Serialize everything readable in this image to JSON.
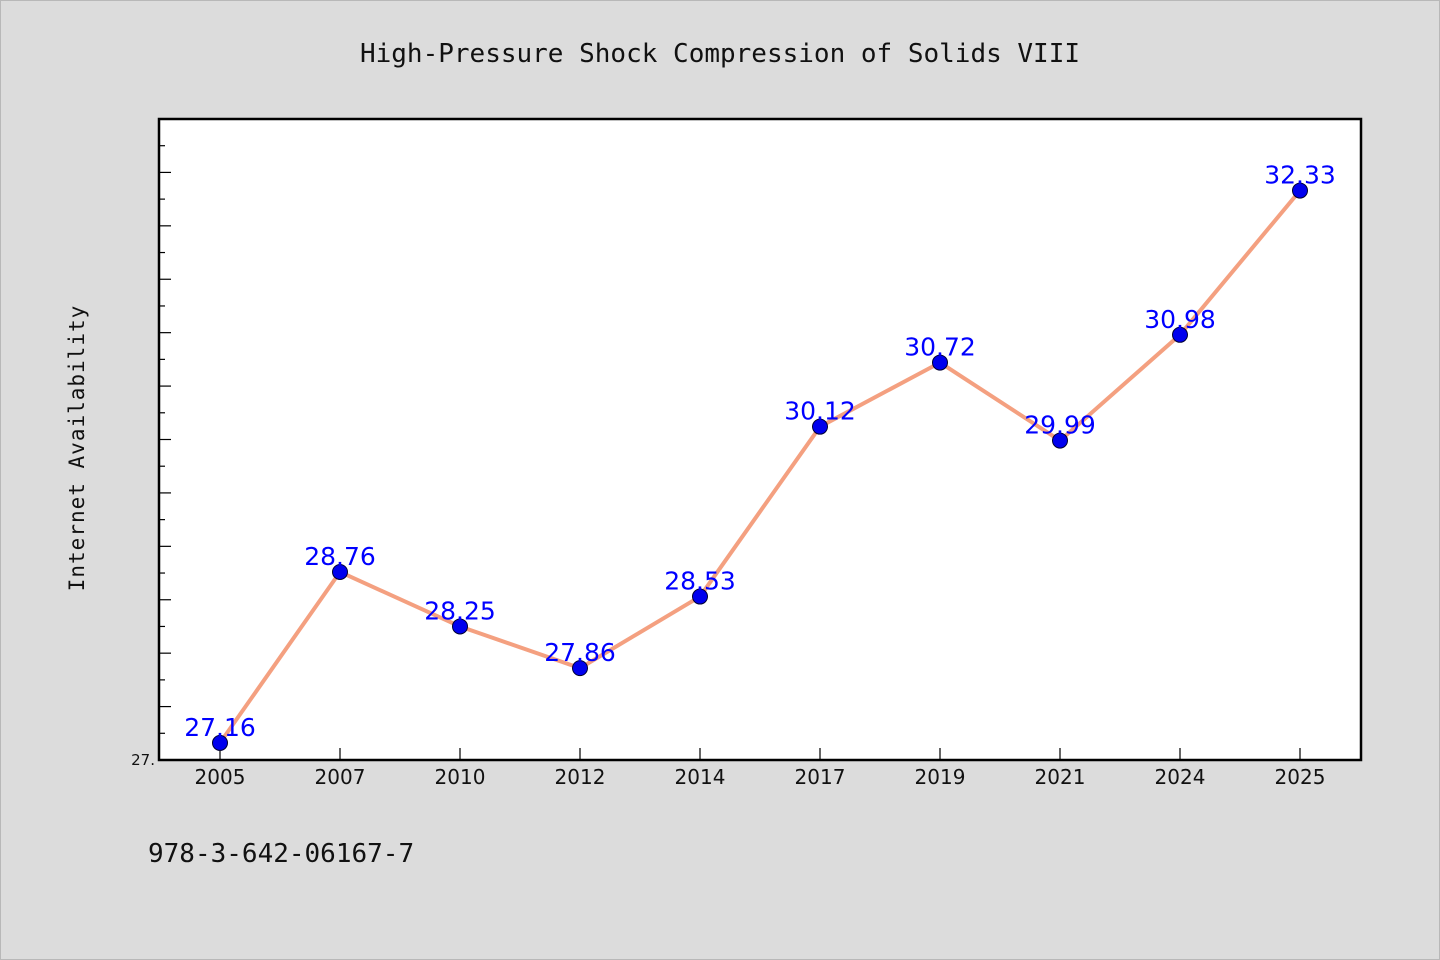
{
  "chart_data": {
    "type": "line",
    "title": "High-Pressure Shock Compression of Solids VIII",
    "xlabel": "",
    "ylabel": "Internet Availability",
    "categories": [
      "2005",
      "2007",
      "2010",
      "2012",
      "2014",
      "2017",
      "2019",
      "2021",
      "2024",
      "2025"
    ],
    "values": [
      27.16,
      28.76,
      28.25,
      27.86,
      28.53,
      30.12,
      30.72,
      29.99,
      30.98,
      32.33
    ],
    "data_labels": [
      "27.16",
      "28.76",
      "28.25",
      "27.86",
      "28.53",
      "30.12",
      "30.72",
      "29.99",
      "30.98",
      "32.33"
    ],
    "ylim": [
      27.0,
      33.0
    ],
    "ytick_labels": [
      "27."
    ],
    "line_color": "#f4a080",
    "marker_color": "#0000ee",
    "label_color": "#0000ff",
    "grid": false,
    "legend": "none"
  },
  "footer": {
    "isbn": "978-3-642-06167-7"
  }
}
